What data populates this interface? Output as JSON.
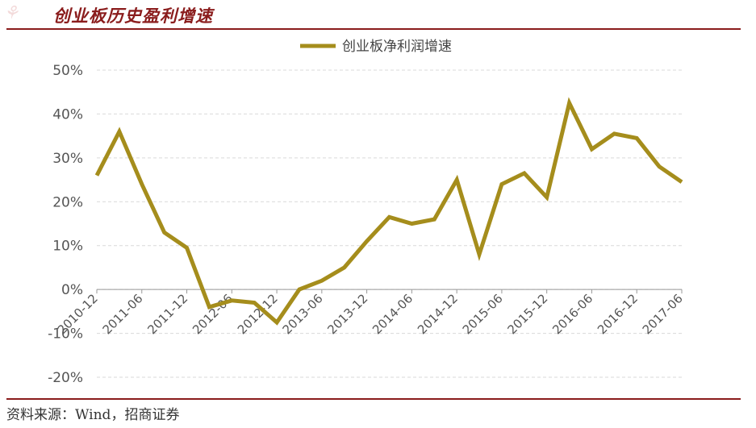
{
  "header": {
    "title": "创业板历史盈利增速"
  },
  "footer": {
    "source": "资料来源：Wind，招商证券"
  },
  "colors": {
    "line": "#a58d1c",
    "rule": "#8a1c1c",
    "grid": "#d9d9d9"
  },
  "chart_data": {
    "type": "line",
    "title": "",
    "xlabel": "",
    "ylabel": "",
    "ylim": [
      -20,
      50
    ],
    "yticks": [
      -20,
      -10,
      0,
      10,
      20,
      30,
      40,
      50
    ],
    "ytick_labels": [
      "-20%",
      "-10%",
      "0%",
      "10%",
      "20%",
      "30%",
      "40%",
      "50%"
    ],
    "xtick_labels": [
      "2010-12",
      "2011-06",
      "2011-12",
      "2012-06",
      "2012-12",
      "2013-06",
      "2013-12",
      "2014-06",
      "2014-12",
      "2015-06",
      "2015-12",
      "2016-06",
      "2016-12",
      "2017-06"
    ],
    "legend": "top-center",
    "grid": "horizontal-dashed",
    "series": [
      {
        "name": "创业板净利润增速",
        "x": [
          "2010-12",
          "2011-03",
          "2011-06",
          "2011-09",
          "2011-12",
          "2012-03",
          "2012-06",
          "2012-09",
          "2012-12",
          "2013-03",
          "2013-06",
          "2013-09",
          "2013-12",
          "2014-03",
          "2014-06",
          "2014-09",
          "2014-12",
          "2015-03",
          "2015-06",
          "2015-09",
          "2015-12",
          "2016-03",
          "2016-06",
          "2016-09",
          "2016-12",
          "2017-03",
          "2017-06"
        ],
        "values": [
          26,
          36,
          24,
          13,
          9.5,
          -4,
          -2.5,
          -3,
          -7.5,
          0,
          2,
          5,
          11,
          16.5,
          15,
          16,
          25,
          8,
          24,
          26.5,
          21,
          42.5,
          32,
          35.5,
          34.5,
          28,
          24.5
        ]
      }
    ]
  }
}
